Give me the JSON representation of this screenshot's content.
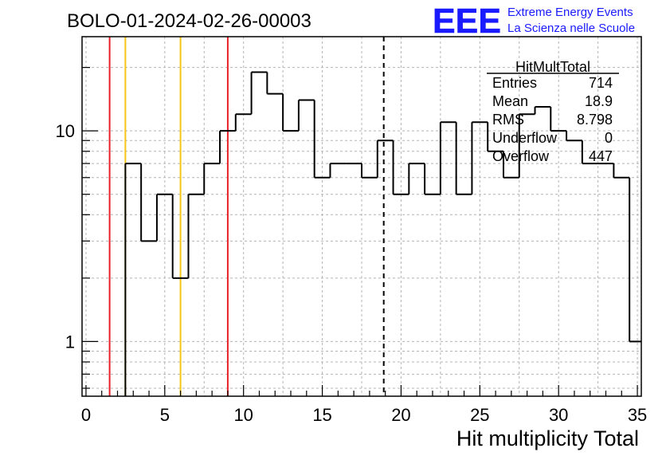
{
  "header": {
    "run_title": "BOLO-01-2024-02-26-00003",
    "logo_text": "EEE",
    "logo_line1": "Extreme Energy Events",
    "logo_line2": "La Scienza nelle Scuole"
  },
  "stats": {
    "title": "HitMultTotal",
    "rows": [
      {
        "label": "Entries",
        "value": "714"
      },
      {
        "label": "Mean",
        "value": "18.9"
      },
      {
        "label": "RMS",
        "value": "8.798"
      },
      {
        "label": "Underflow",
        "value": "0"
      },
      {
        "label": "Overflow",
        "value": "447"
      }
    ]
  },
  "colors": {
    "histogram": "#000000",
    "red_lines": "#e8202a",
    "yellow_lines": "#f5c518",
    "logo_blue": "#1a1aff",
    "grid": "#b4b4b4"
  },
  "chart_data": {
    "type": "histogram",
    "xlabel": "Hit multiplicity Total",
    "ylabel": "",
    "xlim": [
      -0.25,
      35.25
    ],
    "ylim": [
      0.55,
      28
    ],
    "log_y": true,
    "grid": true,
    "x_ticks": [
      0,
      5,
      10,
      15,
      20,
      25,
      30,
      35
    ],
    "y_ticks": [
      1,
      10
    ],
    "bin_width": 1,
    "bins": [
      {
        "x0": 2.5,
        "x1": 3.5,
        "value": 7
      },
      {
        "x0": 3.5,
        "x1": 4.5,
        "value": 3
      },
      {
        "x0": 4.5,
        "x1": 5.5,
        "value": 5
      },
      {
        "x0": 5.5,
        "x1": 6.5,
        "value": 2
      },
      {
        "x0": 6.5,
        "x1": 7.5,
        "value": 5
      },
      {
        "x0": 7.5,
        "x1": 8.5,
        "value": 7
      },
      {
        "x0": 8.5,
        "x1": 9.5,
        "value": 10
      },
      {
        "x0": 9.5,
        "x1": 10.5,
        "value": 12
      },
      {
        "x0": 10.5,
        "x1": 11.5,
        "value": 19
      },
      {
        "x0": 11.5,
        "x1": 12.5,
        "value": 15
      },
      {
        "x0": 12.5,
        "x1": 13.5,
        "value": 10
      },
      {
        "x0": 13.5,
        "x1": 14.5,
        "value": 14
      },
      {
        "x0": 14.5,
        "x1": 15.5,
        "value": 6
      },
      {
        "x0": 15.5,
        "x1": 16.5,
        "value": 7
      },
      {
        "x0": 16.5,
        "x1": 17.5,
        "value": 7
      },
      {
        "x0": 17.5,
        "x1": 18.5,
        "value": 6
      },
      {
        "x0": 18.5,
        "x1": 19.5,
        "value": 9
      },
      {
        "x0": 19.5,
        "x1": 20.5,
        "value": 5
      },
      {
        "x0": 20.5,
        "x1": 21.5,
        "value": 7
      },
      {
        "x0": 21.5,
        "x1": 22.5,
        "value": 5
      },
      {
        "x0": 22.5,
        "x1": 23.5,
        "value": 11
      },
      {
        "x0": 23.5,
        "x1": 24.5,
        "value": 5
      },
      {
        "x0": 24.5,
        "x1": 25.5,
        "value": 11
      },
      {
        "x0": 25.5,
        "x1": 26.5,
        "value": 8
      },
      {
        "x0": 26.5,
        "x1": 27.5,
        "value": 6
      },
      {
        "x0": 27.5,
        "x1": 28.5,
        "value": 12
      },
      {
        "x0": 28.5,
        "x1": 29.5,
        "value": 13
      },
      {
        "x0": 29.5,
        "x1": 30.5,
        "value": 10
      },
      {
        "x0": 30.5,
        "x1": 31.5,
        "value": 9
      },
      {
        "x0": 31.5,
        "x1": 32.5,
        "value": 7
      },
      {
        "x0": 32.5,
        "x1": 33.5,
        "value": 7
      },
      {
        "x0": 33.5,
        "x1": 34.5,
        "value": 6
      },
      {
        "x0": 34.5,
        "x1": 35.25,
        "value": 1
      }
    ],
    "vertical_lines": [
      {
        "x": 1.5,
        "color": "red",
        "style": "solid"
      },
      {
        "x": 2.5,
        "color": "yellow",
        "style": "solid"
      },
      {
        "x": 6.0,
        "color": "yellow",
        "style": "solid"
      },
      {
        "x": 9.0,
        "color": "red",
        "style": "solid"
      },
      {
        "x": 18.9,
        "color": "black",
        "style": "dashed"
      }
    ]
  }
}
